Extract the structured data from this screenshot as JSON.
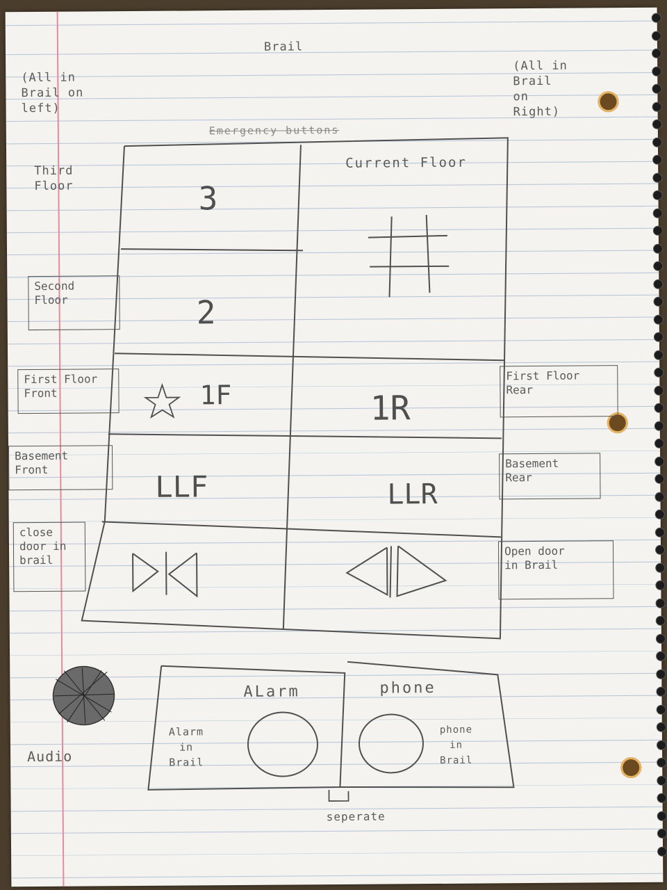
{
  "sketch": {
    "top_note": "Brail",
    "left_note": "(All in\nBrail on\nleft)",
    "right_note": "(All in\nBrail\non\nRight)",
    "scribbled_heading": "Emergency buttons",
    "panel": {
      "third_floor_label": "Third\nFloor",
      "btn_3": "3",
      "btn_2": "2",
      "current_floor_label": "Current Floor",
      "current_floor_symbol": "#",
      "btn_1f": "1F",
      "btn_1r": "1R",
      "btn_llf": "LLF",
      "btn_llr": "LLR"
    },
    "left_labels": [
      {
        "text": "Second\nFloor"
      },
      {
        "text": "First Floor\nFront"
      },
      {
        "text": "Basement\nFront"
      },
      {
        "text": "close\ndoor in\nbrail"
      }
    ],
    "right_labels": [
      {
        "text": "First Floor\nRear"
      },
      {
        "text": "Basement\nRear"
      },
      {
        "text": "Open door\nin Brail"
      }
    ],
    "bottom": {
      "alarm_label": "ALarm",
      "phone_label": "phone",
      "alarm_brail": "Alarm\nin\nBrail",
      "phone_brail": "phone\nin\nBrail",
      "separator_note": "seperate",
      "audio_label": "Audio"
    },
    "colors": {
      "pencil": "#4f4f4f",
      "paper": "#f4f3f0",
      "margin_line": "#e48a98",
      "rule_line": "#b7c6d6",
      "background": "#4a3d2c"
    }
  }
}
